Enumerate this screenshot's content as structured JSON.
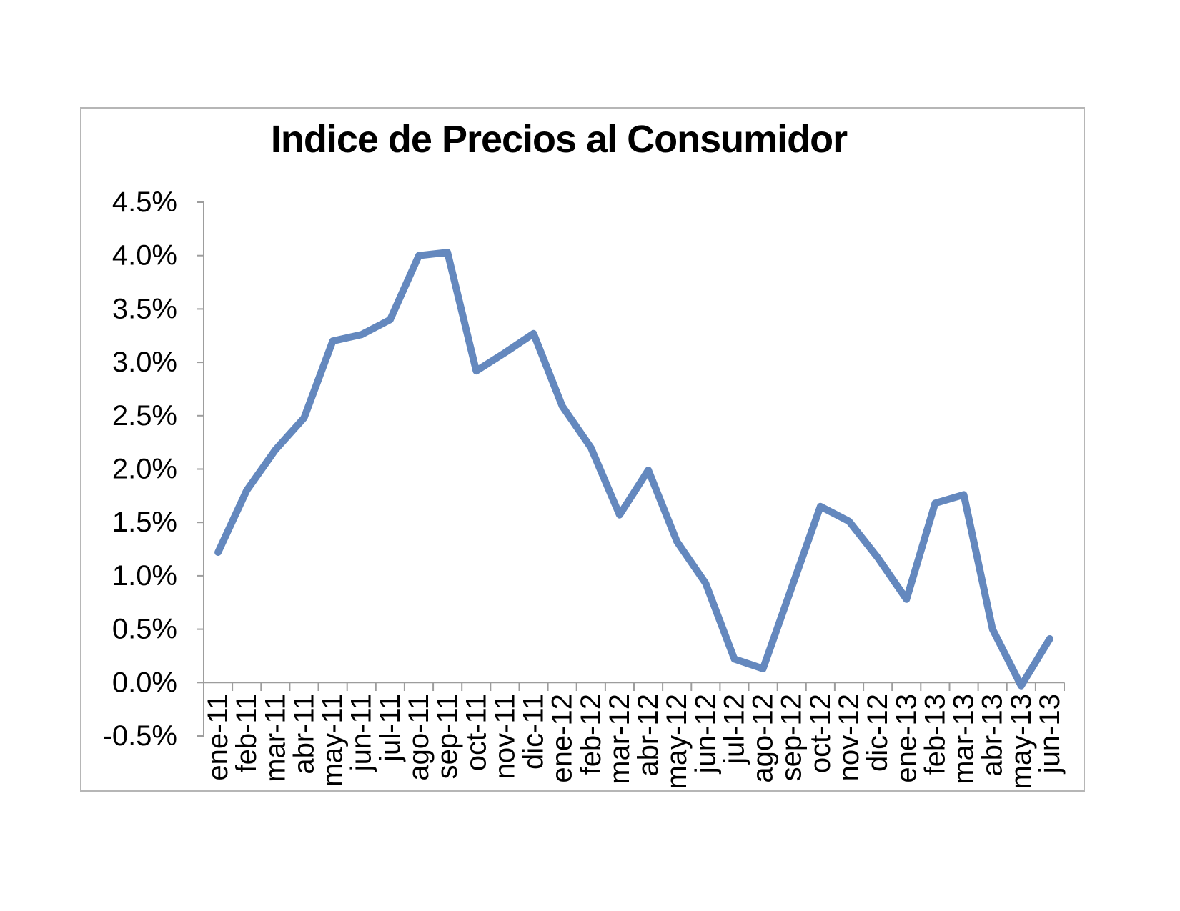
{
  "page": {
    "background": "#ffffff"
  },
  "chart_data": {
    "type": "line",
    "title": "Indice de Precios al Consumidor",
    "categories": [
      "ene-11",
      "feb-11",
      "mar-11",
      "abr-11",
      "may-11",
      "jun-11",
      "jul-11",
      "ago-11",
      "sep-11",
      "oct-11",
      "nov-11",
      "dic-11",
      "ene-12",
      "feb-12",
      "mar-12",
      "abr-12",
      "may-12",
      "jun-12",
      "jul-12",
      "ago-12",
      "sep-12",
      "oct-12",
      "nov-12",
      "dic-12",
      "ene-13",
      "feb-13",
      "mar-13",
      "abr-13",
      "may-13",
      "jun-13"
    ],
    "values": [
      1.22,
      1.8,
      2.18,
      2.48,
      3.2,
      3.26,
      3.4,
      4.0,
      4.03,
      2.92,
      3.09,
      3.27,
      2.59,
      2.2,
      1.57,
      1.99,
      1.32,
      0.93,
      0.22,
      0.13,
      0.89,
      1.65,
      1.51,
      1.17,
      0.78,
      1.68,
      1.76,
      0.5,
      -0.03,
      0.41
    ],
    "unit": "%",
    "xlabel": "",
    "ylabel": "",
    "ylim": [
      -0.5,
      4.5
    ],
    "ytick_step": 0.5,
    "ytick_labels": [
      "4.5%",
      "4.0%",
      "3.5%",
      "3.0%",
      "2.5%",
      "2.0%",
      "1.5%",
      "1.0%",
      "0.5%",
      "0.0%",
      "-0.5%"
    ],
    "grid": "off",
    "legend": "none",
    "line_color": "#6488be",
    "axis_color": "#9d9d9d",
    "frame_color": "#b6b6b6",
    "text_color": "#000000"
  }
}
